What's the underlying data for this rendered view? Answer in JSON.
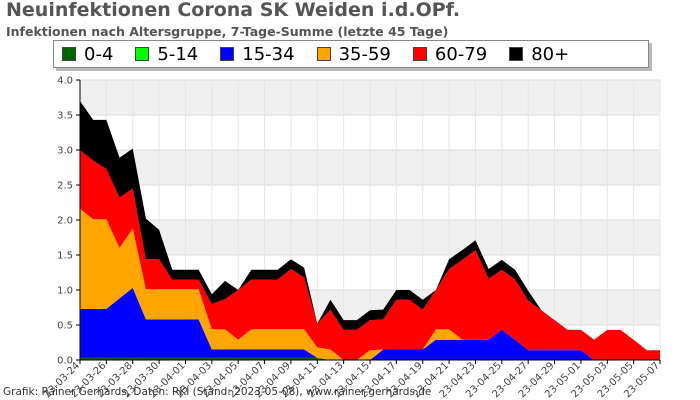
{
  "header": {
    "title": "Neuinfektionen Corona SK Weiden i.d.OPf.",
    "subtitle": "Infektionen nach Altersgruppe, 7-Tage-Summe (letzte 45 Tage)"
  },
  "footer": {
    "credit": "Grafik: Rainer Gerhards, Daten: RKI (Stand: 2023-05-08), www.rainer-gerhards.de"
  },
  "chart_data": {
    "type": "area",
    "stacked": true,
    "title": "Neuinfektionen Corona SK Weiden i.d.OPf.",
    "subtitle": "Infektionen nach Altersgruppe, 7-Tage-Summe (letzte 45 Tage)",
    "xlabel": "",
    "ylabel": "",
    "ylim": [
      0,
      4.0
    ],
    "yticks": [
      "0.0",
      "0.5",
      "1.0",
      "1.5",
      "2.0",
      "2.5",
      "3.0",
      "3.5",
      "4.0"
    ],
    "grid": true,
    "legend_position": "top",
    "x": [
      "2023-03-24",
      "2023-03-25",
      "2023-03-26",
      "2023-03-27",
      "2023-03-28",
      "2023-03-29",
      "2023-03-30",
      "2023-03-31",
      "2023-04-01",
      "2023-04-02",
      "2023-04-03",
      "2023-04-04",
      "2023-04-05",
      "2023-04-06",
      "2023-04-07",
      "2023-04-08",
      "2023-04-09",
      "2023-04-10",
      "2023-04-11",
      "2023-04-12",
      "2023-04-13",
      "2023-04-14",
      "2023-04-15",
      "2023-04-16",
      "2023-04-17",
      "2023-04-18",
      "2023-04-19",
      "2023-04-20",
      "2023-04-21",
      "2023-04-22",
      "2023-04-23",
      "2023-04-24",
      "2023-04-25",
      "2023-04-26",
      "2023-04-27",
      "2023-04-28",
      "2023-04-29",
      "2023-04-30",
      "2023-05-01",
      "2023-05-02",
      "2023-05-03",
      "2023-05-04",
      "2023-05-05",
      "2023-05-06",
      "2023-05-07"
    ],
    "xticklabels": [
      "23-03-24",
      "23-03-26",
      "23-03-28",
      "23-03-30",
      "23-04-01",
      "23-04-03",
      "23-04-05",
      "23-04-07",
      "23-04-09",
      "23-04-11",
      "23-04-13",
      "23-04-15",
      "23-04-17",
      "23-04-19",
      "23-04-21",
      "23-04-23",
      "23-04-25",
      "23-04-27",
      "23-04-29",
      "23-05-01",
      "23-05-03",
      "23-05-05",
      "23-05-07"
    ],
    "series": [
      {
        "name": "0-4",
        "color": "#006400",
        "values": [
          0.03,
          0.03,
          0.03,
          0.03,
          0.03,
          0.03,
          0.03,
          0.03,
          0.03,
          0.03,
          0.03,
          0.03,
          0.03,
          0.03,
          0.03,
          0.03,
          0.03,
          0.03,
          0.03,
          0.0,
          0.0,
          0.0,
          0.0,
          0.0,
          0.0,
          0.0,
          0.0,
          0.0,
          0.0,
          0.0,
          0.0,
          0.0,
          0.0,
          0.0,
          0.0,
          0.0,
          0.0,
          0.0,
          0.0,
          0.0,
          0.0,
          0.0,
          0.0,
          0.0,
          0.0
        ]
      },
      {
        "name": "5-14",
        "color": "#00ff00",
        "values": [
          0,
          0,
          0,
          0,
          0,
          0,
          0,
          0,
          0,
          0,
          0,
          0,
          0,
          0,
          0,
          0,
          0,
          0,
          0,
          0,
          0,
          0,
          0,
          0,
          0,
          0,
          0,
          0,
          0,
          0,
          0,
          0,
          0,
          0,
          0,
          0,
          0,
          0,
          0,
          0,
          0,
          0,
          0,
          0,
          0
        ]
      },
      {
        "name": "15-34",
        "color": "#0000ff",
        "values": [
          0.7,
          0.7,
          0.7,
          0.85,
          1.0,
          0.55,
          0.55,
          0.55,
          0.55,
          0.55,
          0.12,
          0.12,
          0.12,
          0.12,
          0.12,
          0.12,
          0.12,
          0.12,
          0.0,
          0.0,
          0.0,
          0.0,
          0.0,
          0.15,
          0.15,
          0.15,
          0.15,
          0.29,
          0.29,
          0.29,
          0.29,
          0.29,
          0.43,
          0.29,
          0.14,
          0.14,
          0.14,
          0.14,
          0.14,
          0.0,
          0.0,
          0.0,
          0.0,
          0.0,
          0.0
        ]
      },
      {
        "name": "35-59",
        "color": "#ffa500",
        "values": [
          1.43,
          1.28,
          1.28,
          0.72,
          0.85,
          0.43,
          0.43,
          0.43,
          0.43,
          0.43,
          0.29,
          0.29,
          0.14,
          0.29,
          0.29,
          0.29,
          0.29,
          0.29,
          0.15,
          0.15,
          0.0,
          0.0,
          0.14,
          0.0,
          0.0,
          0.0,
          0.0,
          0.15,
          0.15,
          0.0,
          0.0,
          0.0,
          0.0,
          0.0,
          0.0,
          0.0,
          0.0,
          0.0,
          0.0,
          0.0,
          0.0,
          0.0,
          0.0,
          0.0,
          0.0
        ]
      },
      {
        "name": "60-79",
        "color": "#ff0000",
        "values": [
          0.84,
          0.84,
          0.72,
          0.72,
          0.57,
          0.43,
          0.43,
          0.14,
          0.14,
          0.14,
          0.36,
          0.43,
          0.71,
          0.71,
          0.71,
          0.71,
          0.86,
          0.74,
          0.34,
          0.57,
          0.43,
          0.43,
          0.43,
          0.43,
          0.71,
          0.71,
          0.57,
          0.56,
          0.86,
          1.14,
          1.28,
          0.87,
          0.86,
          0.86,
          0.71,
          0.57,
          0.43,
          0.29,
          0.29,
          0.29,
          0.43,
          0.43,
          0.29,
          0.14,
          0.14
        ]
      },
      {
        "name": "80+",
        "color": "#000000",
        "values": [
          0.7,
          0.58,
          0.7,
          0.57,
          0.57,
          0.58,
          0.42,
          0.14,
          0.14,
          0.14,
          0.14,
          0.26,
          0.0,
          0.14,
          0.14,
          0.14,
          0.14,
          0.14,
          0.0,
          0.14,
          0.14,
          0.14,
          0.14,
          0.14,
          0.14,
          0.14,
          0.14,
          0.0,
          0.14,
          0.14,
          0.14,
          0.14,
          0.14,
          0.14,
          0.14,
          0.0,
          0.0,
          0.0,
          0.0,
          0.0,
          0.0,
          0.0,
          0.0,
          0.0,
          0.0
        ]
      }
    ]
  }
}
